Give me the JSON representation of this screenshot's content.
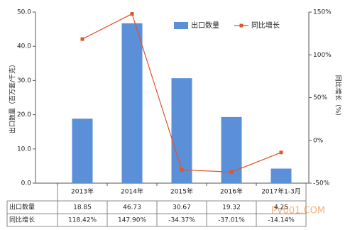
{
  "chart_data": {
    "type": "bar",
    "categories": [
      "2013年",
      "2014年",
      "2015年",
      "2016年",
      "2017年1-3月"
    ],
    "series": [
      {
        "name": "出口数量",
        "type": "bar",
        "color": "#5b8fd8",
        "values": [
          18.85,
          46.73,
          30.67,
          19.32,
          4.25
        ]
      },
      {
        "name": "同比增长",
        "type": "line",
        "axis": "y2",
        "color": "#e0552a",
        "values": [
          118.42,
          147.9,
          -34.37,
          -37.01,
          -14.14
        ],
        "value_labels": [
          "118.42%",
          "147.90%",
          "-34.37%",
          "-37.01%",
          "-14.14%"
        ]
      }
    ],
    "ylabel": "出口数量（百万套/千克）",
    "y2label": "同比增长（%）",
    "ylim": [
      0,
      50
    ],
    "yticks": [
      {
        "value": 0,
        "label": "0.0"
      },
      {
        "value": 10,
        "label": "10.0"
      },
      {
        "value": 20,
        "label": "20.0"
      },
      {
        "value": 30,
        "label": "30.0"
      },
      {
        "value": 40,
        "label": "40.0"
      },
      {
        "value": 50,
        "label": "50.0"
      }
    ],
    "y2lim": [
      -50,
      150
    ],
    "y2ticks": [
      {
        "value": -50,
        "label": "-50%"
      },
      {
        "value": 0,
        "label": "0%"
      },
      {
        "value": 50,
        "label": "50%"
      },
      {
        "value": 100,
        "label": "100%"
      },
      {
        "value": 150,
        "label": "150%"
      }
    ],
    "grid": false,
    "legend": "top-right",
    "watermark": "PV001.COM"
  }
}
